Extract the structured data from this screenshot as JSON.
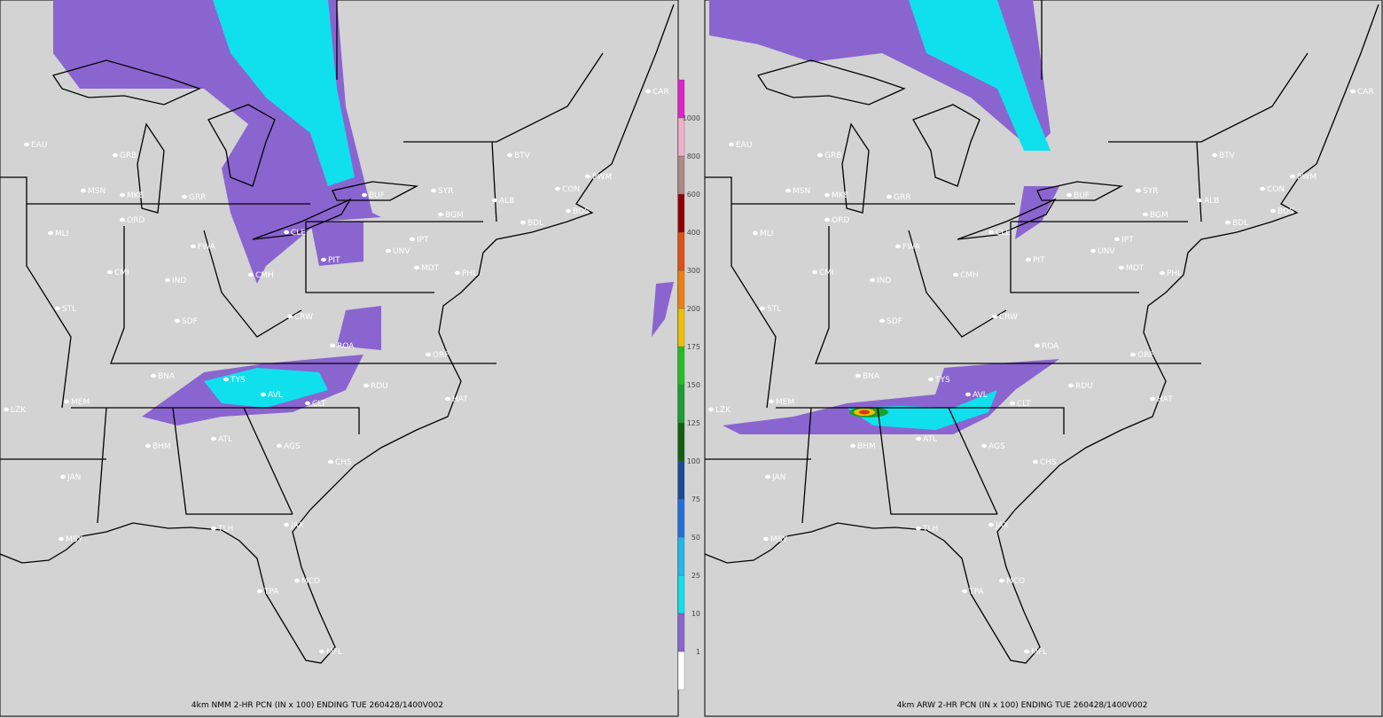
{
  "panels": [
    {
      "caption": "4km NMM 2-HR PCN (IN x 100) ENDING TUE 260428/1400V002"
    },
    {
      "caption": "4km ARW 2-HR PCN (IN x 100) ENDING TUE 260428/1400V002"
    }
  ],
  "colorbar": {
    "labels": [
      "1",
      "10",
      "25",
      "50",
      "75",
      "100",
      "125",
      "150",
      "175",
      "200",
      "300",
      "400",
      "600",
      "800",
      "1000"
    ]
  },
  "stations": [
    "CAR",
    "EAU",
    "GRB",
    "MSN",
    "MKE",
    "GRR",
    "ORD",
    "MLI",
    "FWA",
    "CMI",
    "IND",
    "CLE",
    "PIT",
    "CMH",
    "IPT",
    "UNV",
    "MDT",
    "BGM",
    "SYR",
    "ALB",
    "BTV",
    "PWM",
    "CON",
    "BOS",
    "BDL",
    "PHL",
    "ORF",
    "ROA",
    "CRW",
    "SDF",
    "STL",
    "BNA",
    "TYS",
    "AVL",
    "CLT",
    "RDU",
    "HAT",
    "MEM",
    "LZK",
    "BHM",
    "ATL",
    "AGS",
    "CHS",
    "JAN",
    "TLH",
    "JAX",
    "MCO",
    "TPA",
    "MFL",
    "MSY",
    "BUF"
  ]
}
